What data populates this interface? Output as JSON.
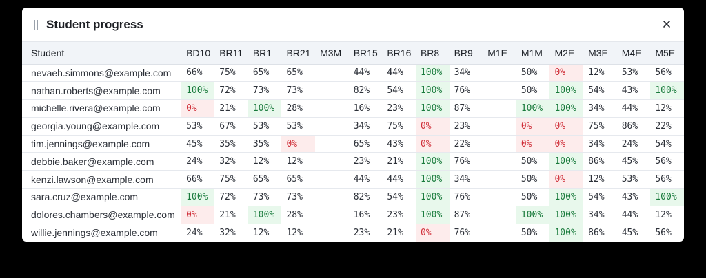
{
  "window": {
    "title": "Student progress",
    "close_glyph": "×"
  },
  "colors": {
    "full_bg": "#e8f8ec",
    "full_text": "#187a3b",
    "zero_bg": "#fdecec",
    "zero_text": "#d0303a"
  },
  "table": {
    "student_header": "Student",
    "columns": [
      "BD10",
      "BR11",
      "BR1",
      "BR21",
      "M3M",
      "BR15",
      "BR16",
      "BR8",
      "BR9",
      "M1E",
      "M1M",
      "M2E",
      "M3E",
      "M4E",
      "M5E"
    ],
    "rows": [
      {
        "student": "nevaeh.simmons@example.com",
        "scores": [
          "66%",
          "75%",
          "65%",
          "65%",
          "",
          "44%",
          "44%",
          "100%",
          "34%",
          "",
          "50%",
          "0%",
          "12%",
          "53%",
          "56%"
        ]
      },
      {
        "student": "nathan.roberts@example.com",
        "scores": [
          "100%",
          "72%",
          "73%",
          "73%",
          "",
          "82%",
          "54%",
          "100%",
          "76%",
          "",
          "50%",
          "100%",
          "54%",
          "43%",
          "100%"
        ]
      },
      {
        "student": "michelle.rivera@example.com",
        "scores": [
          "0%",
          "21%",
          "100%",
          "28%",
          "",
          "16%",
          "23%",
          "100%",
          "87%",
          "",
          "100%",
          "100%",
          "34%",
          "44%",
          "12%"
        ]
      },
      {
        "student": "georgia.young@example.com",
        "scores": [
          "53%",
          "67%",
          "53%",
          "53%",
          "",
          "34%",
          "75%",
          "0%",
          "23%",
          "",
          "0%",
          "0%",
          "75%",
          "86%",
          "22%"
        ]
      },
      {
        "student": "tim.jennings@example.com",
        "scores": [
          "45%",
          "35%",
          "35%",
          "0%",
          "",
          "65%",
          "43%",
          "0%",
          "22%",
          "",
          "0%",
          "0%",
          "34%",
          "24%",
          "54%"
        ]
      },
      {
        "student": "debbie.baker@example.com",
        "scores": [
          "24%",
          "32%",
          "12%",
          "12%",
          "",
          "23%",
          "21%",
          "100%",
          "76%",
          "",
          "50%",
          "100%",
          "86%",
          "45%",
          "56%"
        ]
      },
      {
        "student": "kenzi.lawson@example.com",
        "scores": [
          "66%",
          "75%",
          "65%",
          "65%",
          "",
          "44%",
          "44%",
          "100%",
          "34%",
          "",
          "50%",
          "0%",
          "12%",
          "53%",
          "56%"
        ]
      },
      {
        "student": "sara.cruz@example.com",
        "scores": [
          "100%",
          "72%",
          "73%",
          "73%",
          "",
          "82%",
          "54%",
          "100%",
          "76%",
          "",
          "50%",
          "100%",
          "54%",
          "43%",
          "100%"
        ]
      },
      {
        "student": "dolores.chambers@example.com",
        "scores": [
          "0%",
          "21%",
          "100%",
          "28%",
          "",
          "16%",
          "23%",
          "100%",
          "87%",
          "",
          "100%",
          "100%",
          "34%",
          "44%",
          "12%"
        ]
      },
      {
        "student": "willie.jennings@example.com",
        "scores": [
          "24%",
          "32%",
          "12%",
          "12%",
          "",
          "23%",
          "21%",
          "0%",
          "76%",
          "",
          "50%",
          "100%",
          "86%",
          "45%",
          "56%"
        ]
      }
    ]
  }
}
